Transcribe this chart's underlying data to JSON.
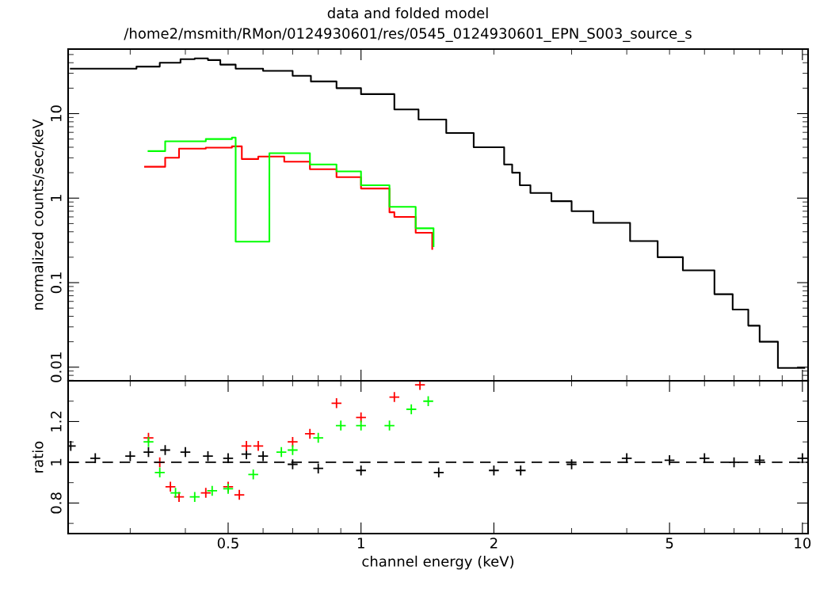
{
  "chart_data": [
    {
      "type": "step",
      "title": "data and folded model",
      "subtitle": "/home2/msmith/RMon/0124930601/res/0545_0124930601_EPN_S003_source_s",
      "ylabel": "normalized counts/sec/keV",
      "log": "xy",
      "xlim": [
        0.217,
        10.3
      ],
      "ylim": [
        0.0069,
        58
      ],
      "yticks": [
        {
          "value": 0.01,
          "label": "0.01"
        },
        {
          "value": 0.1,
          "label": "0.1"
        },
        {
          "value": 1,
          "label": "1"
        },
        {
          "value": 10,
          "label": "10"
        }
      ],
      "tick_labels": "y",
      "grid": false,
      "legend": false,
      "series": [
        {
          "color": "#000000",
          "x": [
            0.22,
            0.25,
            0.28,
            0.31,
            0.35,
            0.39,
            0.42,
            0.45,
            0.48,
            0.52,
            0.6,
            0.7,
            0.77,
            0.88,
            1.0,
            1.19,
            1.35,
            1.56,
            1.8,
            2.11,
            2.2,
            2.29,
            2.42,
            2.7,
            3.0,
            3.36,
            4.07,
            4.7,
            5.36,
            6.32,
            6.95,
            7.54,
            8.0,
            8.8,
            10.1
          ],
          "values": [
            34,
            34,
            34,
            36,
            40,
            44,
            45,
            43,
            38,
            34,
            32,
            28,
            24,
            20,
            17,
            11.2,
            8.5,
            5.9,
            4.0,
            2.5,
            2.0,
            1.42,
            1.15,
            0.92,
            0.7,
            0.51,
            0.31,
            0.2,
            0.14,
            0.073,
            0.048,
            0.031,
            0.02,
            0.0098,
            0.0098
          ]
        },
        {
          "color": "#ff0000",
          "x": [
            0.324,
            0.36,
            0.387,
            0.445,
            0.51,
            0.537,
            0.585,
            0.67,
            0.766,
            0.88,
            1.0,
            1.16,
            1.19,
            1.33,
            1.45
          ],
          "values": [
            2.35,
            3.0,
            3.85,
            3.95,
            4.1,
            2.9,
            3.1,
            2.7,
            2.2,
            1.77,
            1.3,
            0.68,
            0.6,
            0.39,
            0.25
          ]
        },
        {
          "color": "#00ff00",
          "x": [
            0.33,
            0.36,
            0.445,
            0.51,
            0.52,
            0.62,
            0.766,
            0.88,
            1.0,
            1.16,
            1.33,
            1.46
          ],
          "values": [
            3.6,
            4.7,
            5.0,
            5.2,
            0.305,
            3.4,
            2.5,
            2.07,
            1.42,
            0.79,
            0.44,
            0.27
          ]
        }
      ]
    },
    {
      "type": "scatter",
      "ylabel": "ratio",
      "xlabel": "channel energy (keV)",
      "marker": "cross",
      "log": "x",
      "xlim": [
        0.217,
        10.3
      ],
      "ylim": [
        0.65,
        1.4
      ],
      "xticks": [
        0.5,
        1,
        2,
        5,
        10
      ],
      "yticks": [
        0.8,
        1,
        1.2
      ],
      "grid": false,
      "legend": false,
      "ref_lines": [
        {
          "axis": "y",
          "value": 1,
          "color": "#000000",
          "line_style": "dashed"
        }
      ],
      "series": [
        {
          "color": "#000000",
          "x": [
            0.22,
            0.25,
            0.3,
            0.33,
            0.36,
            0.4,
            0.45,
            0.5,
            0.55,
            0.6,
            0.7,
            0.8,
            1.0,
            1.5,
            2.0,
            2.3,
            3.0,
            4.0,
            5.0,
            6.0,
            7.0,
            8.0,
            10.0
          ],
          "values": [
            1.08,
            1.02,
            1.03,
            1.05,
            1.06,
            1.05,
            1.03,
            1.02,
            1.04,
            1.03,
            0.99,
            0.97,
            0.96,
            0.95,
            0.96,
            0.96,
            0.99,
            1.02,
            1.01,
            1.02,
            1.0,
            1.01,
            1.02
          ]
        },
        {
          "color": "#ff0000",
          "x": [
            0.33,
            0.35,
            0.37,
            0.387,
            0.445,
            0.5,
            0.53,
            0.55,
            0.585,
            0.7,
            0.766,
            0.88,
            1.0,
            1.19,
            1.36
          ],
          "values": [
            1.12,
            1.0,
            0.88,
            0.83,
            0.85,
            0.88,
            0.84,
            1.08,
            1.08,
            1.1,
            1.14,
            1.29,
            1.22,
            1.32,
            1.38
          ]
        },
        {
          "color": "#00ff00",
          "x": [
            0.33,
            0.35,
            0.38,
            0.42,
            0.46,
            0.5,
            0.57,
            0.66,
            0.7,
            0.8,
            0.9,
            1.0,
            1.16,
            1.3,
            1.42
          ],
          "values": [
            1.1,
            0.95,
            0.85,
            0.83,
            0.86,
            0.87,
            0.94,
            1.05,
            1.06,
            1.12,
            1.18,
            1.18,
            1.18,
            1.26,
            1.3
          ]
        }
      ]
    }
  ]
}
